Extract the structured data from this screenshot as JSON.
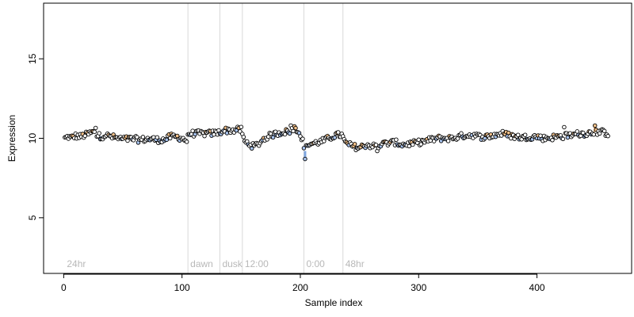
{
  "chart_data": {
    "type": "scatter",
    "title": "",
    "xlabel": "Sample index",
    "ylabel": "Expression",
    "xlim": [
      -17,
      480
    ],
    "ylim": [
      1.5,
      18.5
    ],
    "xticks": [
      0,
      100,
      200,
      300,
      400
    ],
    "yticks": [
      5,
      10,
      15
    ],
    "grid": false,
    "sections": [
      {
        "label": "24hr",
        "x": 0
      },
      {
        "label": "dawn",
        "x": 105
      },
      {
        "label": "dusk",
        "x": 132
      },
      {
        "label": "12:00",
        "x": 151
      },
      {
        "label": "0:00",
        "x": 203
      },
      {
        "label": "48hr",
        "x": 236
      }
    ],
    "colors": {
      "points_default": "#ffffff",
      "points_high": "#f5c28a",
      "points_low": "#a9c4ef",
      "point_stroke": "#000000",
      "bar_high": "#f2a65a",
      "bar_low": "#7ea6e0",
      "section_line": "#d9d9d9",
      "section_text": "#b8b8b8"
    },
    "anchors": [
      [
        1,
        10.0
      ],
      [
        4,
        10.1
      ],
      [
        6,
        10.0
      ],
      [
        8,
        10.1
      ],
      [
        10,
        10.15
      ],
      [
        14,
        10.1
      ],
      [
        18,
        10.2
      ],
      [
        22,
        10.3
      ],
      [
        25,
        10.4
      ],
      [
        28,
        10.2
      ],
      [
        32,
        10.1
      ],
      [
        35,
        10.2
      ],
      [
        40,
        10.1
      ],
      [
        45,
        10.0
      ],
      [
        50,
        9.95
      ],
      [
        55,
        9.95
      ],
      [
        60,
        9.95
      ],
      [
        65,
        9.9
      ],
      [
        70,
        9.95
      ],
      [
        75,
        9.95
      ],
      [
        80,
        9.9
      ],
      [
        85,
        9.9
      ],
      [
        90,
        10.1
      ],
      [
        95,
        10.1
      ],
      [
        100,
        10.0
      ],
      [
        104,
        9.85
      ],
      [
        106,
        10.3
      ],
      [
        112,
        10.3
      ],
      [
        118,
        10.3
      ],
      [
        124,
        10.3
      ],
      [
        130,
        10.35
      ],
      [
        136,
        10.5
      ],
      [
        142,
        10.5
      ],
      [
        150,
        10.55
      ],
      [
        153,
        9.75
      ],
      [
        156,
        9.7
      ],
      [
        160,
        9.5
      ],
      [
        164,
        9.6
      ],
      [
        168,
        9.9
      ],
      [
        172,
        10.1
      ],
      [
        176,
        10.2
      ],
      [
        180,
        10.3
      ],
      [
        185,
        10.4
      ],
      [
        190,
        10.4
      ],
      [
        195,
        10.6
      ],
      [
        200,
        10.3
      ],
      [
        202,
        9.8
      ],
      [
        204,
        9.2
      ],
      [
        206,
        9.6
      ],
      [
        212,
        9.7
      ],
      [
        218,
        9.8
      ],
      [
        224,
        10.0
      ],
      [
        230,
        10.2
      ],
      [
        235,
        10.2
      ],
      [
        238,
        9.7
      ],
      [
        244,
        9.5
      ],
      [
        250,
        9.4
      ],
      [
        256,
        9.6
      ],
      [
        262,
        9.5
      ],
      [
        268,
        9.6
      ],
      [
        274,
        9.7
      ],
      [
        280,
        9.75
      ],
      [
        286,
        9.6
      ],
      [
        292,
        9.65
      ],
      [
        298,
        9.7
      ],
      [
        304,
        9.8
      ],
      [
        310,
        9.9
      ],
      [
        316,
        10.0
      ],
      [
        322,
        10.0
      ],
      [
        328,
        10.0
      ],
      [
        334,
        10.1
      ],
      [
        340,
        10.2
      ],
      [
        346,
        10.2
      ],
      [
        352,
        10.1
      ],
      [
        358,
        10.1
      ],
      [
        364,
        10.2
      ],
      [
        370,
        10.3
      ],
      [
        376,
        10.2
      ],
      [
        382,
        10.1
      ],
      [
        388,
        10.05
      ],
      [
        394,
        10.1
      ],
      [
        400,
        10.1
      ],
      [
        406,
        10.0
      ],
      [
        412,
        10.05
      ],
      [
        418,
        10.1
      ],
      [
        424,
        10.15
      ],
      [
        430,
        10.2
      ],
      [
        436,
        10.3
      ],
      [
        442,
        10.3
      ],
      [
        448,
        10.4
      ],
      [
        454,
        10.4
      ],
      [
        460,
        10.3
      ]
    ],
    "outliers": [
      [
        27,
        10.65
      ],
      [
        192,
        10.8
      ],
      [
        195,
        10.75
      ],
      [
        204,
        8.7
      ],
      [
        265,
        9.2
      ],
      [
        423,
        10.7
      ],
      [
        449,
        10.8
      ]
    ],
    "n_points": 460
  }
}
